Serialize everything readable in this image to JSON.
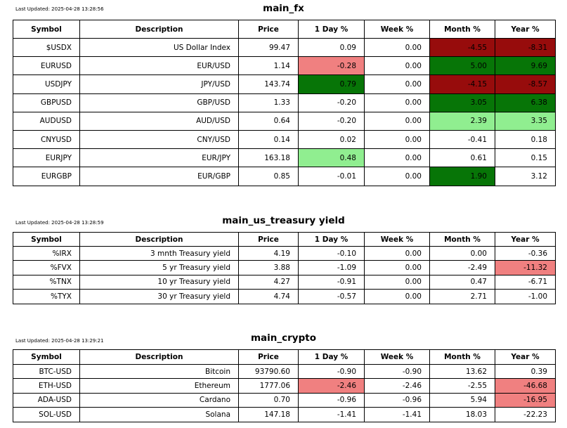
{
  "palette": {
    "dark_red": "#970c0c",
    "dark_green": "#077507",
    "light_green": "#90ee90",
    "light_red": "#f08080",
    "border": "#000000",
    "background": "#ffffff",
    "text": "#000000"
  },
  "chart_data": [
    {
      "type": "table",
      "title": "main_fx",
      "last_updated": "Last Updated: 2025-04-28 13:28:56",
      "columns": [
        "Symbol",
        "Description",
        "Price",
        "1 Day %",
        "Week %",
        "Month %",
        "Year %"
      ],
      "rows": [
        [
          "$USDX",
          "US Dollar Index",
          99.47,
          0.09,
          0.0,
          -4.55,
          -8.31
        ],
        [
          "EURUSD",
          "EUR/USD",
          1.14,
          -0.28,
          0.0,
          5.0,
          9.69
        ],
        [
          "USDJPY",
          "JPY/USD",
          143.74,
          0.79,
          0.0,
          -4.15,
          -8.57
        ],
        [
          "GBPUSD",
          "GBP/USD",
          1.33,
          -0.2,
          0.0,
          3.05,
          6.38
        ],
        [
          "AUDUSD",
          "AUD/USD",
          0.64,
          -0.2,
          0.0,
          2.39,
          3.35
        ],
        [
          "CNYUSD",
          "CNY/USD",
          0.14,
          0.02,
          0.0,
          -0.41,
          0.18
        ],
        [
          "EURJPY",
          "EUR/JPY",
          163.18,
          0.48,
          0.0,
          0.61,
          0.15
        ],
        [
          "EURGBP",
          "EUR/GBP",
          0.85,
          -0.01,
          0.0,
          1.9,
          3.12
        ]
      ],
      "cell_bg": [
        [
          null,
          null,
          null,
          null,
          null,
          "dark_red",
          "dark_red"
        ],
        [
          null,
          null,
          null,
          "light_red",
          null,
          "dark_green",
          "dark_green"
        ],
        [
          null,
          null,
          null,
          "dark_green",
          null,
          "dark_red",
          "dark_red"
        ],
        [
          null,
          null,
          null,
          null,
          null,
          "dark_green",
          "dark_green"
        ],
        [
          null,
          null,
          null,
          null,
          null,
          "light_green",
          "light_green"
        ],
        [
          null,
          null,
          null,
          null,
          null,
          null,
          null
        ],
        [
          null,
          null,
          null,
          "light_green",
          null,
          null,
          null
        ],
        [
          null,
          null,
          null,
          null,
          null,
          "dark_green",
          null
        ]
      ]
    },
    {
      "type": "table",
      "title": "main_us_treasury yield",
      "last_updated": "Last Updated: 2025-04-28 13:28:59",
      "columns": [
        "Symbol",
        "Description",
        "Price",
        "1 Day %",
        "Week %",
        "Month %",
        "Year %"
      ],
      "rows": [
        [
          "%IRX",
          "3 mnth Treasury yield",
          4.19,
          -0.1,
          0.0,
          0.0,
          -0.36
        ],
        [
          "%FVX",
          "5 yr Treasury yield",
          3.88,
          -1.09,
          0.0,
          -2.49,
          -11.32
        ],
        [
          "%TNX",
          "10 yr Treasury yield",
          4.27,
          -0.91,
          0.0,
          0.47,
          -6.71
        ],
        [
          "%TYX",
          "30 yr Treasury yield",
          4.74,
          -0.57,
          0.0,
          2.71,
          -1.0
        ]
      ],
      "cell_bg": [
        [
          null,
          null,
          null,
          null,
          null,
          null,
          null
        ],
        [
          null,
          null,
          null,
          null,
          null,
          null,
          "light_red"
        ],
        [
          null,
          null,
          null,
          null,
          null,
          null,
          null
        ],
        [
          null,
          null,
          null,
          null,
          null,
          null,
          null
        ]
      ]
    },
    {
      "type": "table",
      "title": "main_crypto",
      "last_updated": "Last Updated: 2025-04-28 13:29:21",
      "columns": [
        "Symbol",
        "Description",
        "Price",
        "1 Day %",
        "Week %",
        "Month %",
        "Year %"
      ],
      "rows": [
        [
          "BTC-USD",
          "Bitcoin",
          93790.6,
          -0.9,
          -0.9,
          13.62,
          0.39
        ],
        [
          "ETH-USD",
          "Ethereum",
          1777.06,
          -2.46,
          -2.46,
          -2.55,
          -46.68
        ],
        [
          "ADA-USD",
          "Cardano",
          0.7,
          -0.96,
          -0.96,
          5.94,
          -16.95
        ],
        [
          "SOL-USD",
          "Solana",
          147.18,
          -1.41,
          -1.41,
          18.03,
          -22.23
        ]
      ],
      "cell_bg": [
        [
          null,
          null,
          null,
          null,
          null,
          null,
          null
        ],
        [
          null,
          null,
          null,
          "light_red",
          null,
          null,
          "light_red"
        ],
        [
          null,
          null,
          null,
          null,
          null,
          null,
          "light_red"
        ],
        [
          null,
          null,
          null,
          null,
          null,
          null,
          null
        ]
      ]
    }
  ]
}
